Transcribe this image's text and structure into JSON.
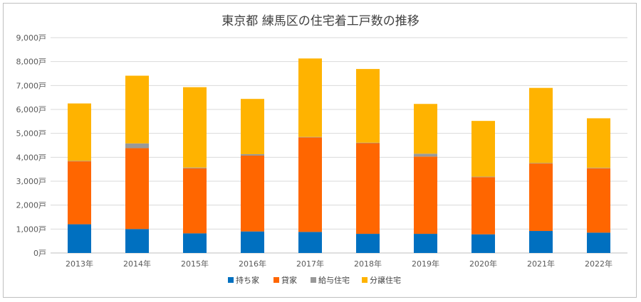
{
  "chart_data": {
    "type": "bar",
    "stacked": true,
    "title": "東京都 練馬区の住宅着工戸数の推移",
    "categories": [
      "2013年",
      "2014年",
      "2015年",
      "2016年",
      "2017年",
      "2018年",
      "2019年",
      "2020年",
      "2021年",
      "2022年"
    ],
    "y_tick_labels": [
      "0戸",
      "1,000戸",
      "2,000戸",
      "3,000戸",
      "4,000戸",
      "5,000戸",
      "6,000戸",
      "7,000戸",
      "8,000戸",
      "9,000戸"
    ],
    "ylim": [
      0,
      9000
    ],
    "grid": true,
    "legend_position": "bottom",
    "series": [
      {
        "name": "持ち家",
        "color": "#0070C0",
        "values": [
          1200,
          1000,
          820,
          900,
          880,
          800,
          800,
          780,
          920,
          850
        ]
      },
      {
        "name": "貸家",
        "color": "#FF6600",
        "values": [
          2630,
          3380,
          2720,
          3170,
          3950,
          3790,
          3230,
          2390,
          2820,
          2690
        ]
      },
      {
        "name": "給与住宅",
        "color": "#999999",
        "values": [
          20,
          200,
          30,
          60,
          20,
          20,
          120,
          20,
          20,
          20
        ]
      },
      {
        "name": "分譲住宅",
        "color": "#FFB300",
        "values": [
          2400,
          2830,
          3360,
          2310,
          3280,
          3080,
          2080,
          2330,
          3140,
          2070
        ]
      }
    ]
  }
}
